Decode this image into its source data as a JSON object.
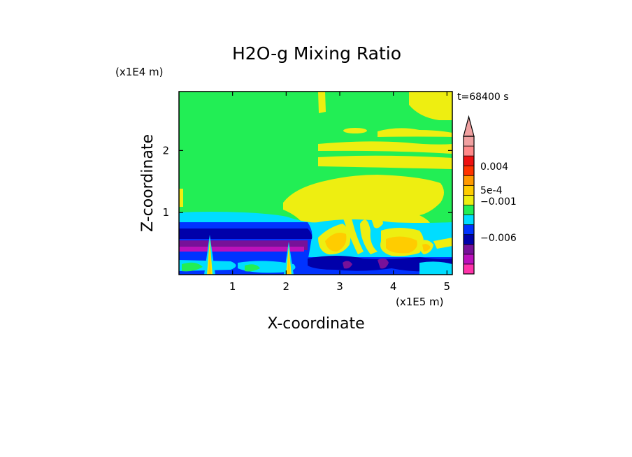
{
  "chart_data": {
    "type": "heatmap",
    "title": "H2O-g Mixing Ratio",
    "xlabel": "X-coordinate",
    "ylabel": "Z-coordinate",
    "x_unit": "(x1E5 m)",
    "y_unit": "(x1E4 m)",
    "time_label": "t=68400 s",
    "xlim": [
      0,
      5.1
    ],
    "ylim": [
      0,
      2.95
    ],
    "x_ticks": [
      1,
      2,
      3,
      4,
      5
    ],
    "y_ticks": [
      1,
      2
    ],
    "colorbar": {
      "labels": [
        "0.004",
        "5e-4",
        "−0.001",
        "−0.006"
      ],
      "colors": [
        "#ff33aa",
        "#bb11bb",
        "#771199",
        "#0000aa",
        "#0033ff",
        "#00ddff",
        "#22ee55",
        "#eeee11",
        "#ffcc00",
        "#ff9900",
        "#ff3300",
        "#ee1111",
        "#ff8888",
        "#f0a0a0"
      ],
      "extend": "max"
    }
  }
}
